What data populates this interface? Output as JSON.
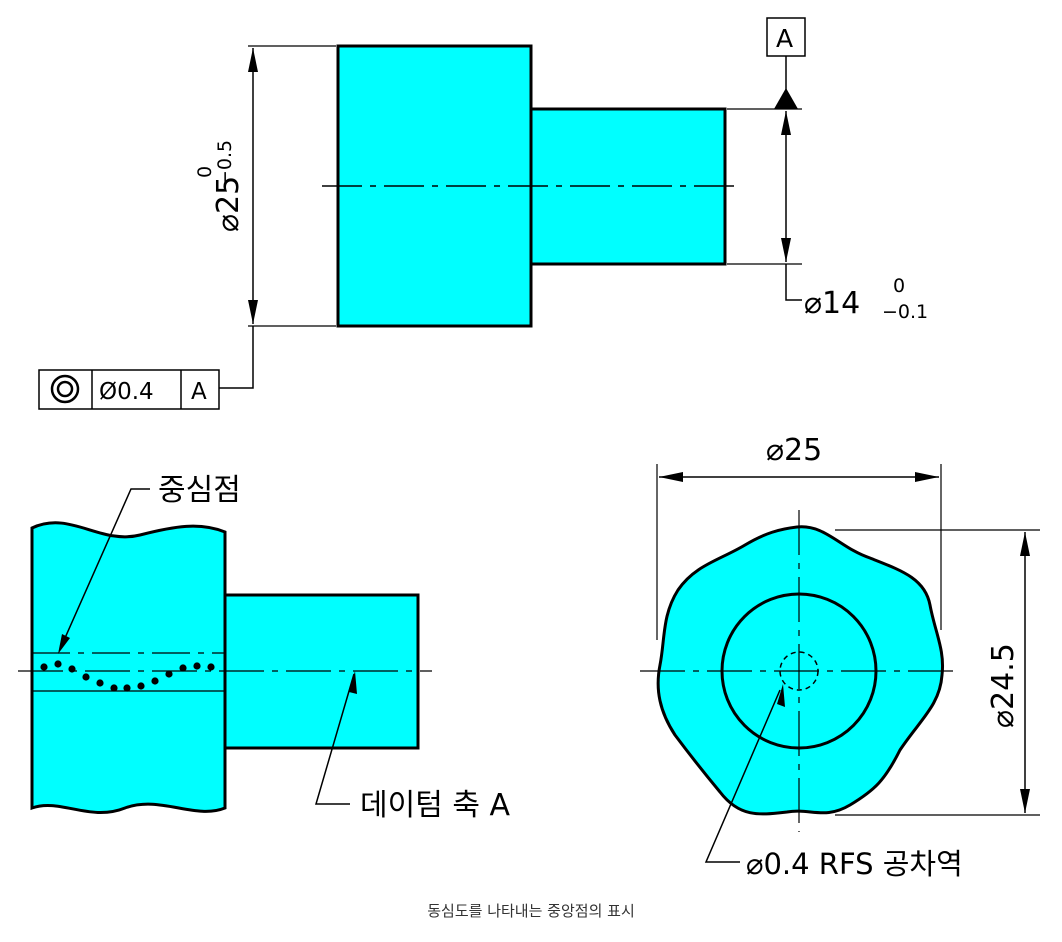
{
  "colors": {
    "part_fill": "#00FFFF",
    "line": "#000000",
    "background": "#FFFFFF",
    "caption": "#333333"
  },
  "top_view": {
    "large_dia": {
      "value": "⌀25",
      "upper_tol": "0",
      "lower_tol": "−0.5"
    },
    "small_dia": {
      "value": "⌀14",
      "upper_tol": "0",
      "lower_tol": "−0.1"
    },
    "datum_label": "A",
    "control_frame": {
      "symbol_icon": "concentricity-icon",
      "tolerance": "Ø0.4",
      "datum": "A"
    }
  },
  "bottom_left": {
    "center_point_label": "중심점",
    "datum_axis_label": "데이텀 축 A"
  },
  "bottom_right": {
    "outer_dia": "⌀25",
    "inner_dia": "⌀24.5",
    "tolerance_zone_label": "⌀0.4 RFS 공차역"
  },
  "caption": "동심도를 나타내는  중앙점의 표시"
}
